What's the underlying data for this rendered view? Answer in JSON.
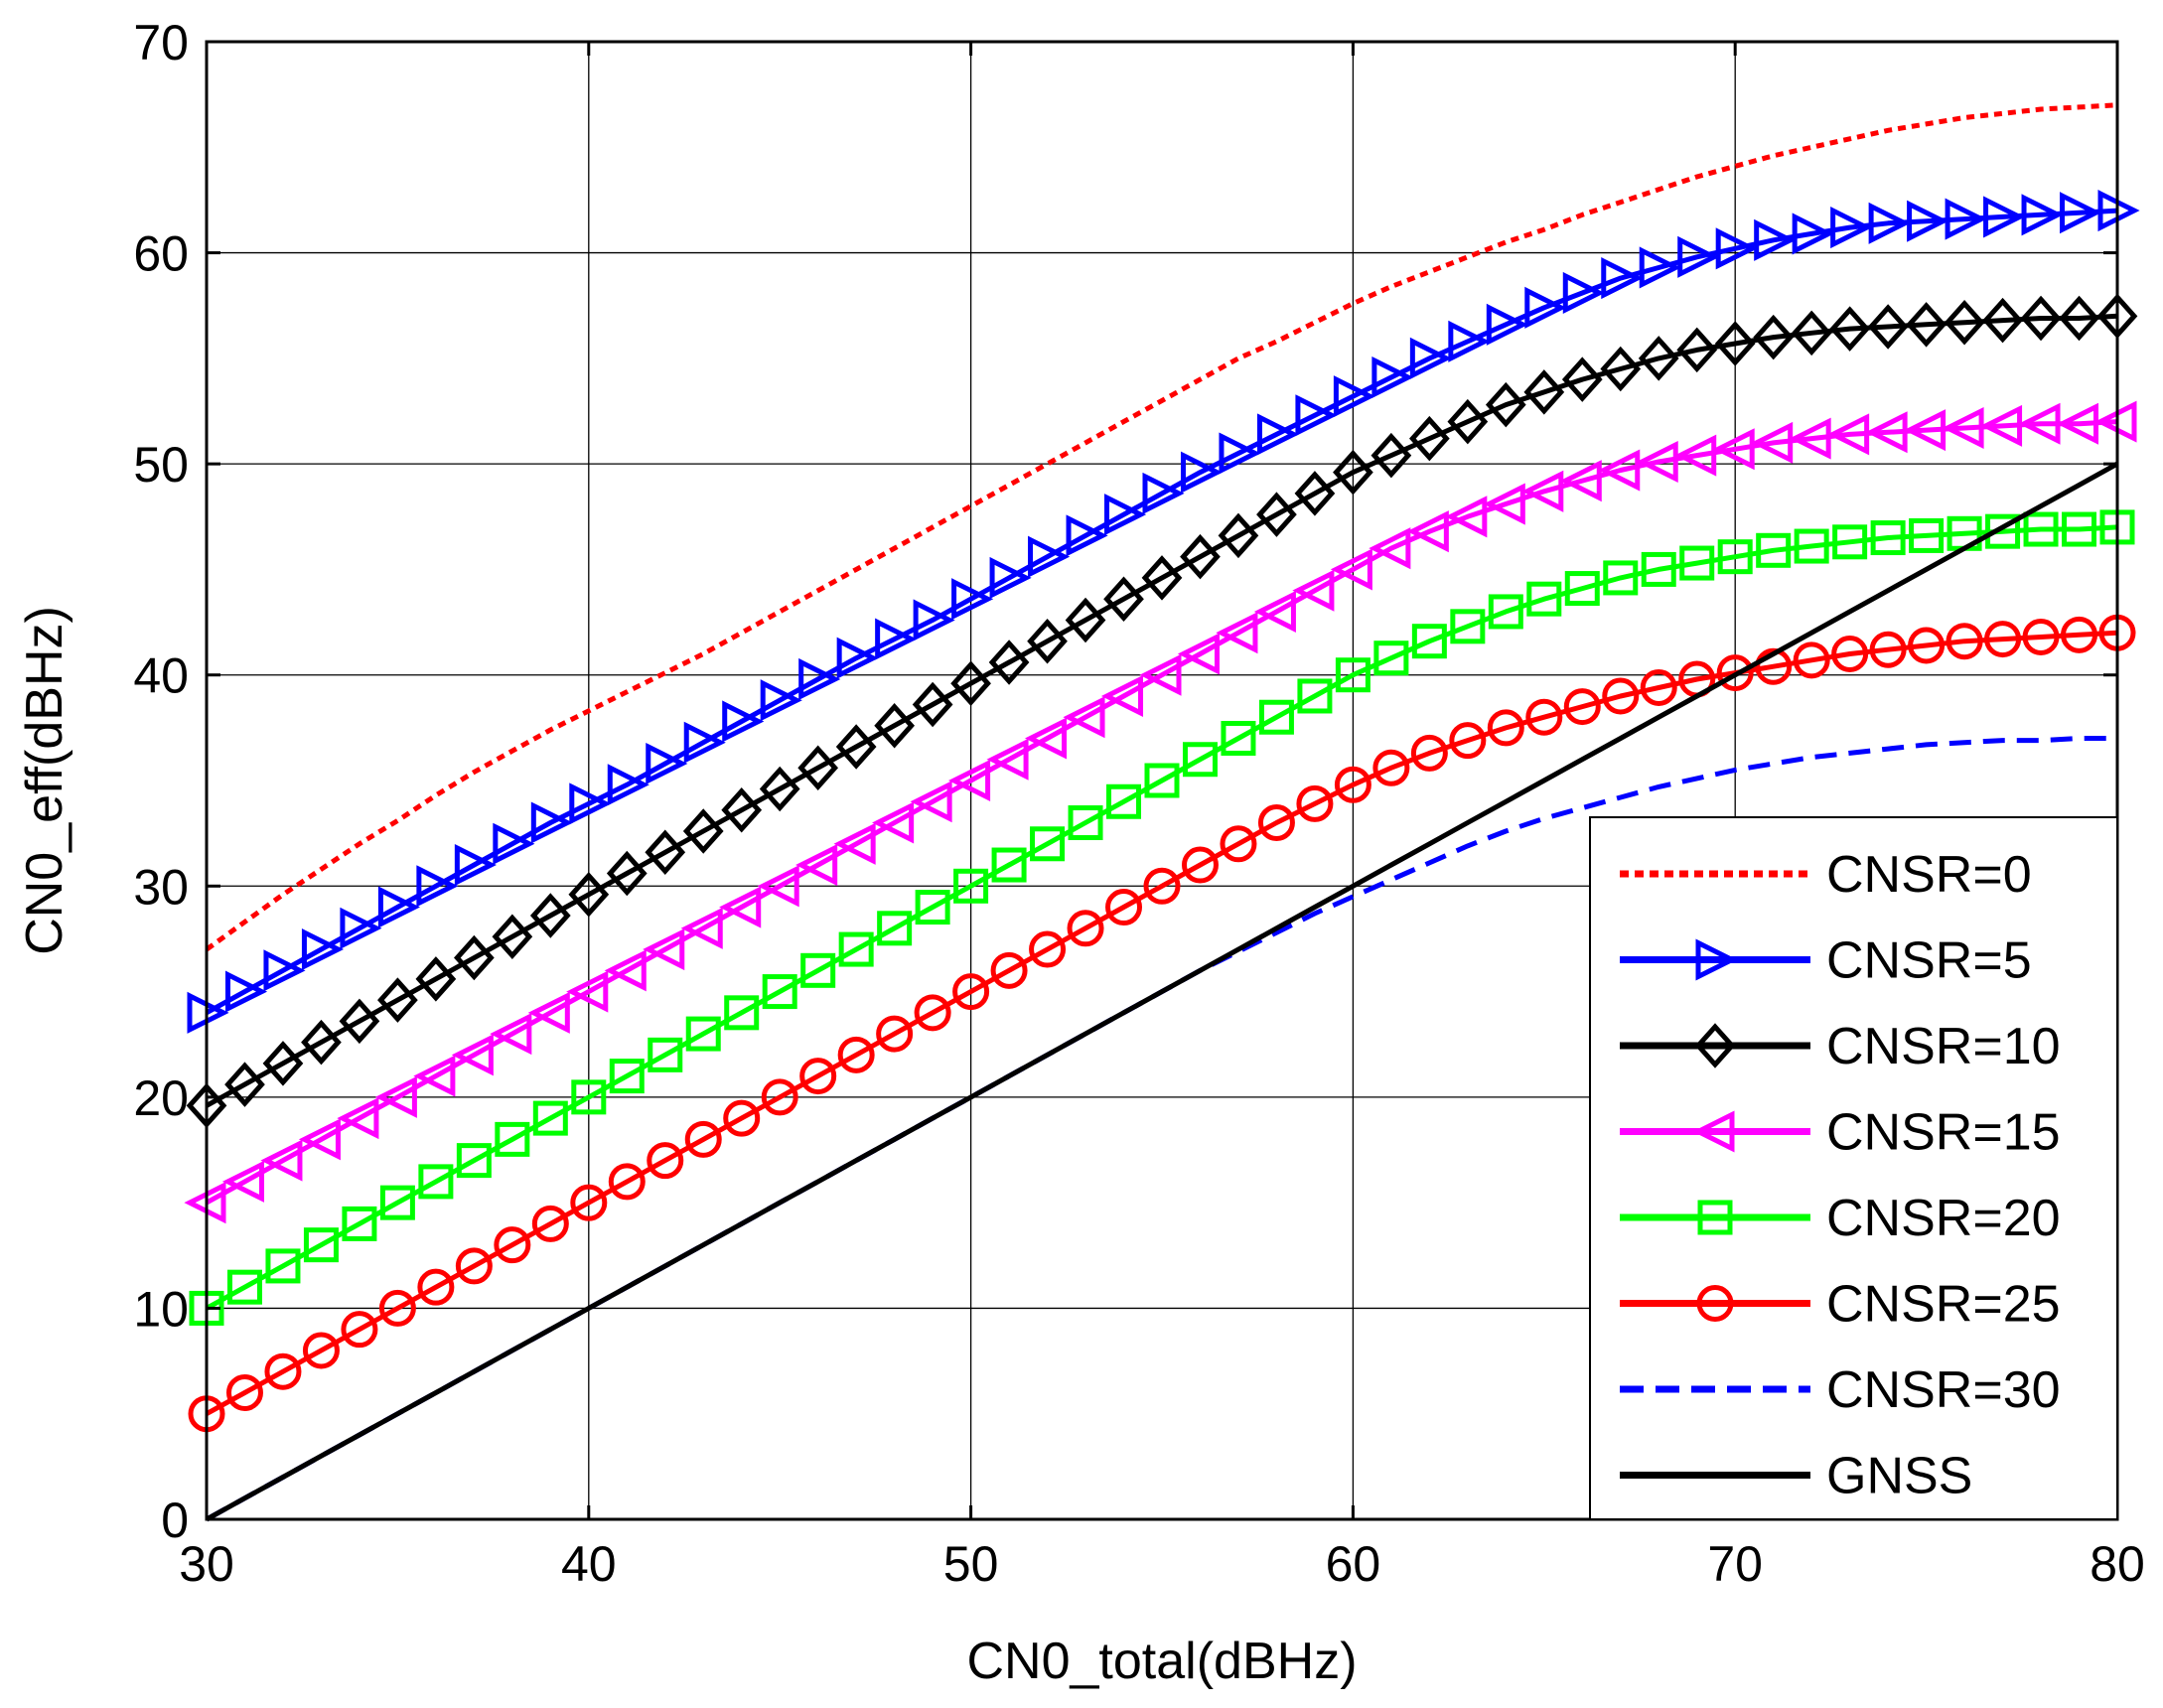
{
  "chart_data": {
    "type": "line",
    "title": "",
    "xlabel": "CN0_total(dBHz)",
    "ylabel": "CN0_eff(dBHz)",
    "xlim": [
      30,
      80
    ],
    "ylim": [
      0,
      70
    ],
    "xticks": [
      30,
      40,
      50,
      60,
      70,
      80
    ],
    "yticks": [
      0,
      10,
      20,
      30,
      40,
      50,
      60,
      70
    ],
    "grid": true,
    "legend_position": "bottom-right",
    "x": [
      30,
      31,
      32,
      33,
      34,
      35,
      36,
      37,
      38,
      39,
      40,
      41,
      42,
      43,
      44,
      45,
      46,
      47,
      48,
      49,
      50,
      51,
      52,
      53,
      54,
      55,
      56,
      57,
      58,
      59,
      60,
      61,
      62,
      63,
      64,
      65,
      66,
      67,
      68,
      69,
      70,
      71,
      72,
      73,
      74,
      75,
      76,
      77,
      78,
      79,
      80
    ],
    "series": [
      {
        "name": "CNSR=0",
        "color": "#ff0000",
        "style": "dotted",
        "marker": "none",
        "values": [
          27,
          28.3,
          29.6,
          30.8,
          32,
          33.1,
          34.3,
          35.4,
          36.4,
          37.4,
          38.3,
          39.2,
          40.1,
          41,
          42,
          43,
          44,
          45,
          46,
          47,
          48,
          49,
          50,
          51,
          52,
          53,
          54,
          55,
          55.8,
          56.7,
          57.6,
          58.4,
          59.1,
          59.8,
          60.5,
          61.1,
          61.8,
          62.4,
          63,
          63.6,
          64.1,
          64.6,
          65,
          65.4,
          65.8,
          66.1,
          66.4,
          66.6,
          66.8,
          66.9,
          67
        ]
      },
      {
        "name": "CNSR=5",
        "color": "#0000ff",
        "style": "solid",
        "marker": "triangle-right",
        "values": [
          24,
          25,
          26,
          27,
          28,
          29,
          30,
          31,
          32,
          33,
          33.9,
          34.8,
          35.8,
          36.8,
          37.8,
          38.8,
          39.8,
          40.8,
          41.7,
          42.6,
          43.6,
          44.6,
          45.6,
          46.6,
          47.6,
          48.6,
          49.6,
          50.5,
          51.4,
          52.3,
          53.2,
          54.1,
          55,
          55.8,
          56.6,
          57.4,
          58.1,
          58.8,
          59.3,
          59.8,
          60.2,
          60.6,
          60.9,
          61.2,
          61.4,
          61.5,
          61.6,
          61.7,
          61.8,
          61.9,
          62
        ]
      },
      {
        "name": "CNSR=10",
        "color": "#000000",
        "style": "solid",
        "marker": "diamond",
        "values": [
          19.6,
          20.6,
          21.6,
          22.6,
          23.6,
          24.6,
          25.6,
          26.6,
          27.6,
          28.6,
          29.6,
          30.6,
          31.6,
          32.6,
          33.6,
          34.6,
          35.6,
          36.6,
          37.6,
          38.6,
          39.6,
          40.6,
          41.6,
          42.6,
          43.6,
          44.6,
          45.6,
          46.6,
          47.6,
          48.6,
          49.6,
          50.4,
          51.2,
          52,
          52.8,
          53.4,
          54,
          54.5,
          55,
          55.4,
          55.7,
          56,
          56.2,
          56.4,
          56.5,
          56.6,
          56.7,
          56.8,
          56.9,
          56.9,
          57
        ]
      },
      {
        "name": "CNSR=15",
        "color": "#ff00ff",
        "style": "solid",
        "marker": "triangle-left",
        "values": [
          15,
          16,
          17,
          18,
          19,
          20,
          21,
          22,
          23,
          24,
          25,
          26,
          27,
          28,
          29,
          30,
          31,
          32,
          33,
          34,
          35,
          36,
          37,
          38,
          39,
          40,
          41,
          42,
          43,
          44,
          45,
          46,
          46.8,
          47.5,
          48.1,
          48.7,
          49.2,
          49.7,
          50.1,
          50.4,
          50.7,
          51,
          51.2,
          51.4,
          51.5,
          51.6,
          51.7,
          51.8,
          51.9,
          51.9,
          52
        ]
      },
      {
        "name": "CNSR=20",
        "color": "#00ff00",
        "style": "solid",
        "marker": "square",
        "values": [
          10,
          11,
          12,
          13,
          14,
          15,
          16,
          17,
          18,
          19,
          20,
          21,
          22,
          23,
          24,
          25,
          26,
          27,
          28,
          29,
          30,
          31,
          32,
          33,
          34,
          35,
          36,
          37,
          38,
          39,
          40,
          40.8,
          41.6,
          42.3,
          43,
          43.6,
          44.1,
          44.6,
          45,
          45.3,
          45.6,
          45.9,
          46.1,
          46.3,
          46.5,
          46.6,
          46.7,
          46.8,
          46.9,
          46.9,
          47
        ]
      },
      {
        "name": "CNSR=25",
        "color": "#ff0000",
        "style": "solid",
        "marker": "circle",
        "values": [
          5,
          6,
          7,
          8,
          9,
          10,
          11,
          12,
          13,
          14,
          15,
          16,
          17,
          18,
          19,
          20,
          21,
          22,
          23,
          24,
          25,
          26,
          27,
          28,
          29,
          30,
          31,
          32,
          33,
          33.9,
          34.8,
          35.6,
          36.3,
          36.9,
          37.5,
          38,
          38.5,
          39,
          39.4,
          39.8,
          40.1,
          40.4,
          40.7,
          41,
          41.2,
          41.4,
          41.6,
          41.7,
          41.8,
          41.9,
          42
        ]
      },
      {
        "name": "CNSR=30",
        "color": "#0000ff",
        "style": "dashed",
        "marker": "none",
        "values": [
          0,
          1,
          2,
          3,
          4,
          5,
          6,
          7,
          8,
          9,
          10,
          11,
          12,
          13,
          14,
          15,
          16,
          17,
          18,
          19,
          20,
          21,
          22,
          23,
          24,
          25,
          26,
          26.9,
          27.8,
          28.7,
          29.5,
          30.3,
          31.1,
          31.9,
          32.6,
          33.2,
          33.7,
          34.2,
          34.7,
          35.1,
          35.5,
          35.8,
          36.1,
          36.3,
          36.5,
          36.7,
          36.8,
          36.9,
          36.9,
          37,
          37
        ]
      },
      {
        "name": "GNSS",
        "color": "#000000",
        "style": "solid",
        "marker": "none",
        "values": [
          0,
          1,
          2,
          3,
          4,
          5,
          6,
          7,
          8,
          9,
          10,
          11,
          12,
          13,
          14,
          15,
          16,
          17,
          18,
          19,
          20,
          21,
          22,
          23,
          24,
          25,
          26,
          27,
          28,
          29,
          30,
          31,
          32,
          33,
          34,
          35,
          36,
          37,
          38,
          39,
          40,
          41,
          42,
          43,
          44,
          45,
          46,
          47,
          48,
          49,
          50
        ]
      }
    ]
  }
}
